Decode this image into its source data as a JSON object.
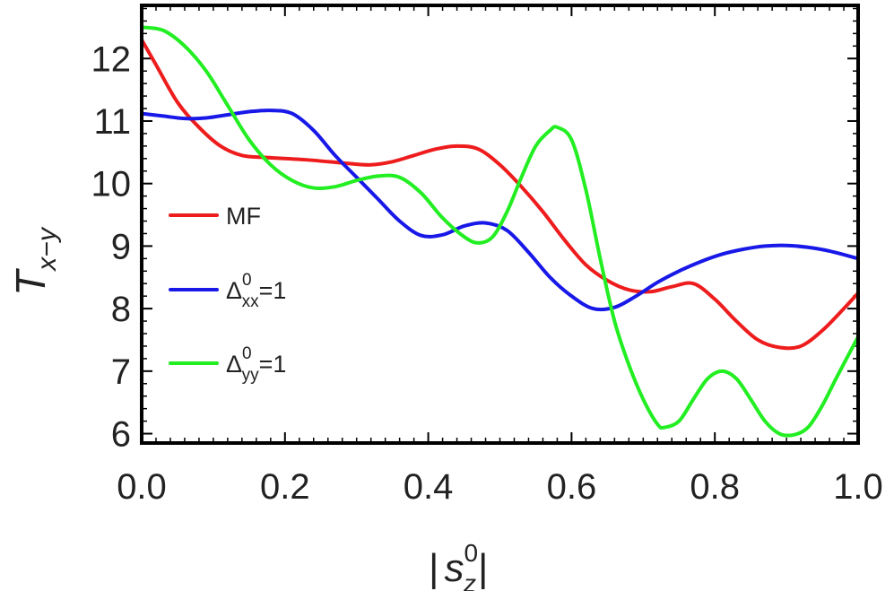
{
  "chart_data": {
    "type": "line",
    "xlabel": "|s_z^0|",
    "xlabel_parts": {
      "open": "|",
      "base": "s",
      "sup": "0",
      "sub": "z",
      "close": "|"
    },
    "ylabel": "T_{x-y}",
    "ylabel_parts": {
      "base": "T",
      "sub": "x−y"
    },
    "xlim": [
      0.0,
      1.0
    ],
    "ylim": [
      5.85,
      12.85
    ],
    "xticks": [
      0.0,
      0.2,
      0.4,
      0.6,
      0.8,
      1.0
    ],
    "xtick_labels": [
      "0.0",
      "0.2",
      "0.4",
      "0.6",
      "0.8",
      "1.0"
    ],
    "yticks": [
      6,
      7,
      8,
      9,
      10,
      11,
      12
    ],
    "ytick_labels": [
      "6",
      "7",
      "8",
      "9",
      "10",
      "11",
      "12"
    ],
    "grid": false,
    "legend_position": "left",
    "series": [
      {
        "name": "MF",
        "legend_parts": {
          "base": "MF",
          "sup": "",
          "sub": "",
          "tail": ""
        },
        "color": "#ee1c1c",
        "x": [
          0.0,
          0.02,
          0.05,
          0.08,
          0.11,
          0.14,
          0.17,
          0.2,
          0.23,
          0.26,
          0.29,
          0.32,
          0.35,
          0.38,
          0.41,
          0.44,
          0.47,
          0.5,
          0.53,
          0.56,
          0.59,
          0.62,
          0.65,
          0.68,
          0.71,
          0.74,
          0.77,
          0.8,
          0.83,
          0.86,
          0.89,
          0.92,
          0.95,
          0.98,
          1.0
        ],
        "y": [
          12.3,
          11.9,
          11.3,
          10.9,
          10.6,
          10.45,
          10.42,
          10.4,
          10.38,
          10.35,
          10.32,
          10.3,
          10.35,
          10.45,
          10.55,
          10.6,
          10.55,
          10.3,
          9.95,
          9.55,
          9.1,
          8.7,
          8.45,
          8.3,
          8.27,
          8.35,
          8.4,
          8.15,
          7.8,
          7.5,
          7.38,
          7.4,
          7.65,
          8.0,
          8.25
        ]
      },
      {
        "name": "Δ_xx^0=1",
        "legend_parts": {
          "base": "Δ",
          "sup": "0",
          "sub": "xx",
          "tail": "=1"
        },
        "color": "#1818e8",
        "x": [
          0.0,
          0.03,
          0.06,
          0.09,
          0.12,
          0.15,
          0.18,
          0.21,
          0.24,
          0.27,
          0.3,
          0.33,
          0.36,
          0.39,
          0.42,
          0.45,
          0.48,
          0.51,
          0.54,
          0.57,
          0.6,
          0.63,
          0.66,
          0.69,
          0.72,
          0.75,
          0.78,
          0.81,
          0.84,
          0.87,
          0.9,
          0.93,
          0.96,
          1.0
        ],
        "y": [
          11.12,
          11.08,
          11.04,
          11.05,
          11.1,
          11.15,
          11.17,
          11.12,
          10.85,
          10.45,
          10.1,
          9.75,
          9.4,
          9.17,
          9.18,
          9.32,
          9.37,
          9.25,
          8.9,
          8.5,
          8.2,
          8.0,
          8.02,
          8.2,
          8.42,
          8.6,
          8.75,
          8.87,
          8.95,
          9.0,
          9.01,
          8.98,
          8.92,
          8.8
        ]
      },
      {
        "name": "Δ_yy^0=1",
        "legend_parts": {
          "base": "Δ",
          "sup": "0",
          "sub": "yy",
          "tail": "=1"
        },
        "color": "#22ee22",
        "x": [
          0.0,
          0.03,
          0.06,
          0.09,
          0.12,
          0.15,
          0.18,
          0.21,
          0.24,
          0.27,
          0.3,
          0.33,
          0.36,
          0.39,
          0.42,
          0.45,
          0.47,
          0.49,
          0.51,
          0.53,
          0.55,
          0.57,
          0.58,
          0.6,
          0.62,
          0.64,
          0.66,
          0.68,
          0.7,
          0.72,
          0.73,
          0.75,
          0.77,
          0.79,
          0.81,
          0.83,
          0.85,
          0.87,
          0.89,
          0.91,
          0.93,
          0.95,
          0.97,
          1.0
        ],
        "y": [
          12.5,
          12.45,
          12.2,
          11.8,
          11.25,
          10.7,
          10.3,
          10.05,
          9.93,
          9.95,
          10.05,
          10.12,
          10.1,
          9.85,
          9.45,
          9.15,
          9.05,
          9.15,
          9.55,
          10.1,
          10.6,
          10.85,
          10.9,
          10.7,
          9.9,
          8.8,
          7.8,
          7.1,
          6.55,
          6.15,
          6.1,
          6.2,
          6.55,
          6.88,
          7.0,
          6.88,
          6.55,
          6.2,
          6.0,
          5.98,
          6.1,
          6.45,
          6.9,
          7.55
        ]
      }
    ]
  }
}
